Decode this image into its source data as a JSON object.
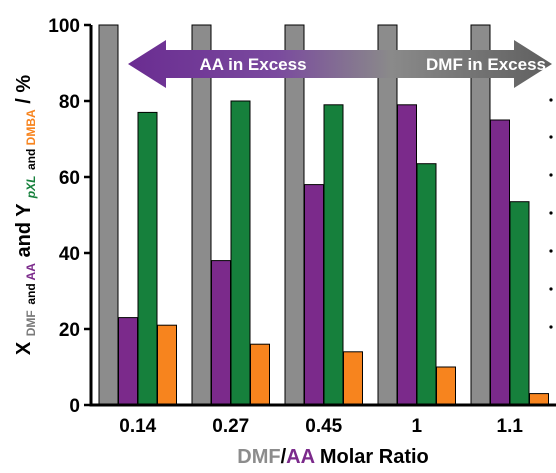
{
  "chart_data": {
    "type": "bar",
    "categories": [
      "0.14",
      "0.27",
      "0.45",
      "1",
      "1.1"
    ],
    "series": [
      {
        "values": [
          100,
          100,
          100,
          100,
          100
        ],
        "color": "#808080"
      },
      {
        "values": [
          23,
          38,
          58,
          79,
          75
        ],
        "color": "#7b2a8b"
      },
      {
        "values": [
          77,
          80,
          79,
          63.5,
          53.5
        ],
        "color": "#16803c"
      },
      {
        "values": [
          21,
          16,
          14,
          10,
          3
        ],
        "color": "#f7841e"
      }
    ],
    "ylim": [
      0,
      100
    ],
    "yticks": [
      0,
      20,
      40,
      60,
      80,
      100
    ],
    "ylabel": {
      "x_letter": "X",
      "x_sub_dmf": "DMF",
      "x_sub_and": " and ",
      "x_sub_aa": "AA",
      "and_text": " and Y",
      "y_sub_pxl": "pXL",
      "y_sub_and": " and ",
      "y_sub_dmba": "DMBA",
      "unit": " / %"
    },
    "xlabel": {
      "part1": "DMF",
      "slash": "/",
      "part2": "AA",
      "rest": " Molar Ratio"
    },
    "annotations": {
      "left_arrow": "AA in Excess",
      "right_arrow": "DMF in Excess"
    },
    "colors": {
      "dmf": "#9a9a9a",
      "aa": "#7b2a8b",
      "pxl": "#16803c",
      "dmba": "#f7841e",
      "arrow_purple": "#6a2c91",
      "arrow_gray": "#6b6b6b"
    }
  }
}
